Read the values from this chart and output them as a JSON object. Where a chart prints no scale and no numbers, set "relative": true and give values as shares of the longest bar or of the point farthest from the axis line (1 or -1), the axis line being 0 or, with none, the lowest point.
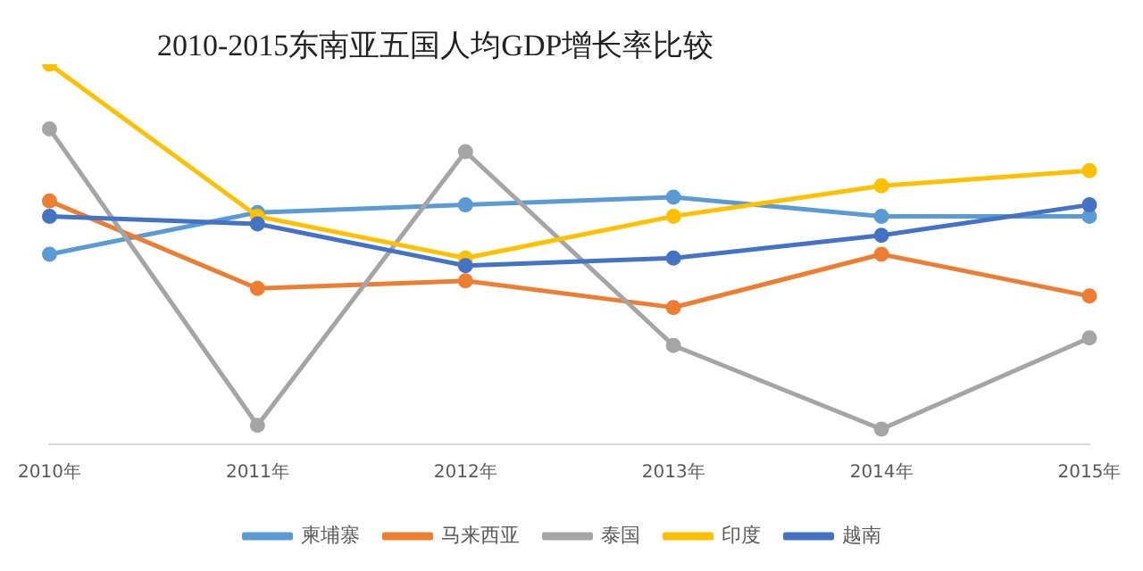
{
  "chart_data": {
    "type": "line",
    "title": "2010-2015东南亚五国人均GDP增长率比较",
    "relative": true,
    "categories": [
      "2010年",
      "2011年",
      "2012年",
      "2013年",
      "2014年",
      "2015年"
    ],
    "legend": "bottom",
    "marker": "circle",
    "grid": false,
    "series": [
      {
        "name": "柬埔寨",
        "color": "#5b9bd5",
        "values": [
          0.5,
          0.61,
          0.63,
          0.65,
          0.6,
          0.6
        ]
      },
      {
        "name": "马来西亚",
        "color": "#ed7d31",
        "values": [
          0.64,
          0.41,
          0.43,
          0.36,
          0.5,
          0.39
        ]
      },
      {
        "name": "泰国",
        "color": "#a5a5a5",
        "values": [
          0.83,
          0.05,
          0.77,
          0.26,
          0.04,
          0.28
        ]
      },
      {
        "name": "印度",
        "color": "#ffc000",
        "values": [
          1,
          0.6,
          0.49,
          0.6,
          0.68,
          0.72
        ]
      },
      {
        "name": "越南",
        "color": "#4472c4",
        "values": [
          0.6,
          0.58,
          0.47,
          0.49,
          0.55,
          0.63
        ]
      }
    ]
  }
}
